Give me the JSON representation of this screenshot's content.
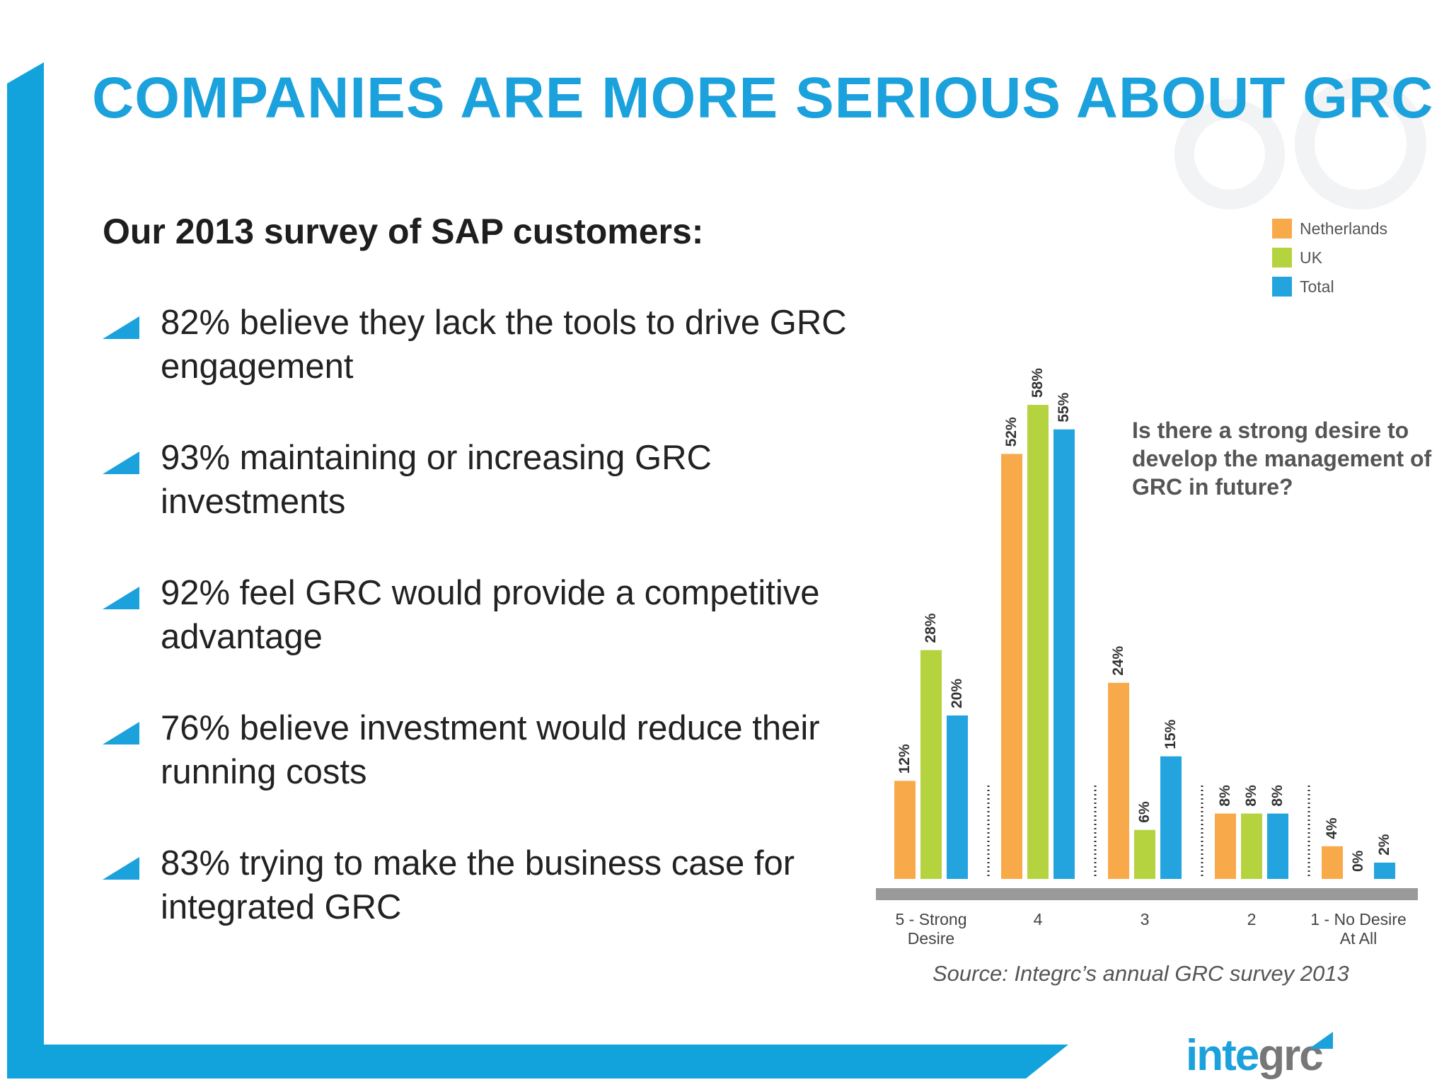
{
  "slide": {
    "title": "COMPANIES ARE MORE SERIOUS ABOUT GRC",
    "subtitle": "Our 2013 survey of SAP customers:",
    "bullets": [
      "82% believe they lack the tools to drive GRC engagement",
      "93% maintaining or increasing GRC investments",
      "92% feel GRC would provide a competitive advantage",
      "76% believe investment would reduce their running costs",
      "83% trying to make the business case for integrated GRC"
    ],
    "source": "Source: Integrc’s annual GRC survey 2013",
    "logo": {
      "part1": "inte",
      "part2": "grc"
    }
  },
  "chart_data": {
    "type": "bar",
    "title": "Is there a strong desire to develop the management of GRC in future?",
    "categories": [
      [
        "5 - Strong",
        "Desire"
      ],
      [
        "4"
      ],
      [
        "3"
      ],
      [
        "2"
      ],
      [
        "1 - No Desire",
        "At All"
      ]
    ],
    "series": [
      {
        "name": "Netherlands",
        "color": "#f8aa4b",
        "values": [
          12,
          52,
          24,
          8,
          4
        ]
      },
      {
        "name": "UK",
        "color": "#b5d33e",
        "values": [
          28,
          58,
          6,
          8,
          0
        ]
      },
      {
        "name": "Total",
        "color": "#24a4de",
        "values": [
          20,
          55,
          15,
          8,
          2
        ]
      }
    ],
    "value_suffix": "%",
    "ylim": [
      0,
      60
    ],
    "legend_position": "top-right",
    "grid": false
  }
}
